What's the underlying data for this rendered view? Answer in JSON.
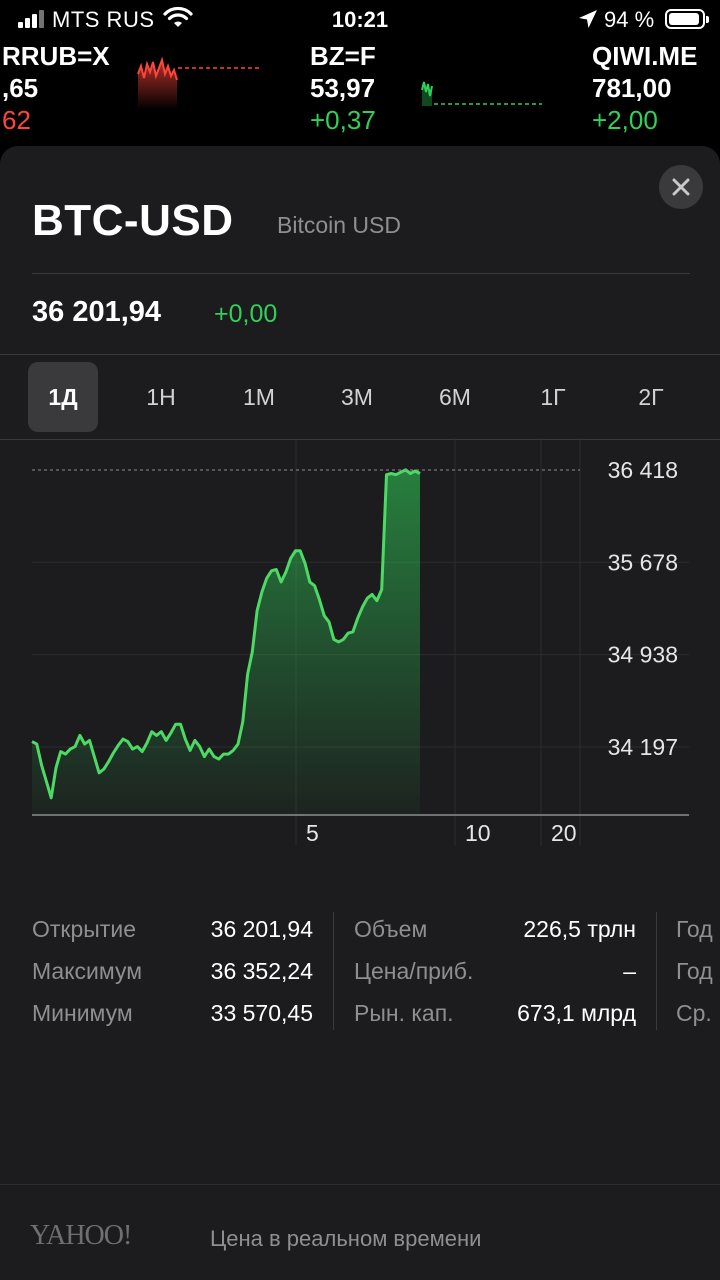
{
  "status_bar": {
    "carrier": "MTS RUS",
    "time": "10:21",
    "battery_percent": "94 %",
    "icons": [
      "signal-icon",
      "wifi-icon",
      "location-icon",
      "battery-icon"
    ]
  },
  "ticker": [
    {
      "symbol": "RRUB=X",
      "price": ",65",
      "change": "62",
      "change_color": "#ff453a"
    },
    {
      "symbol": "BZ=F",
      "price": "53,97",
      "change": "+0,37",
      "change_color": "#30d158"
    },
    {
      "symbol": "QIWI.ME",
      "price": "781,00",
      "change": "+2,00",
      "change_color": "#30d158"
    }
  ],
  "quote": {
    "symbol": "BTC-USD",
    "name": "Bitcoin USD",
    "price": "36 201,94",
    "change": "+0,00"
  },
  "ranges": [
    {
      "label": "1Д",
      "active": true
    },
    {
      "label": "1Н",
      "active": false
    },
    {
      "label": "1М",
      "active": false
    },
    {
      "label": "3М",
      "active": false
    },
    {
      "label": "6М",
      "active": false
    },
    {
      "label": "1Г",
      "active": false
    },
    {
      "label": "2Г",
      "active": false
    }
  ],
  "chart_data": {
    "type": "area",
    "y_ticks": [
      "36 418",
      "35 678",
      "34 938",
      "34 197"
    ],
    "x_ticks": [
      "5",
      "10",
      "20"
    ],
    "reference_line": 36418,
    "color": "#30d158",
    "values": [
      34240,
      34220,
      34050,
      33920,
      33790,
      34030,
      34160,
      34140,
      34180,
      34200,
      34290,
      34220,
      34250,
      34120,
      33990,
      34020,
      34080,
      34150,
      34210,
      34260,
      34240,
      34180,
      34200,
      34160,
      34230,
      34320,
      34290,
      34320,
      34250,
      34310,
      34380,
      34380,
      34260,
      34170,
      34250,
      34200,
      34120,
      34180,
      34120,
      34100,
      34140,
      34140,
      34170,
      34220,
      34400,
      34780,
      34960,
      35290,
      35440,
      35550,
      35610,
      35620,
      35520,
      35600,
      35710,
      35770,
      35770,
      35670,
      35520,
      35490,
      35380,
      35250,
      35200,
      35060,
      35040,
      35060,
      35110,
      35120,
      35230,
      35320,
      35390,
      35420,
      35370,
      35460,
      36380,
      36390,
      36380,
      36400,
      36420,
      36390,
      36410,
      36390
    ]
  },
  "stats": {
    "col1": [
      {
        "label": "Открытие",
        "value": "36 201,94"
      },
      {
        "label": "Максимум",
        "value": "36 352,24"
      },
      {
        "label": "Минимум",
        "value": "33 570,45"
      }
    ],
    "col2": [
      {
        "label": "Объем",
        "value": "226,5 трлн"
      },
      {
        "label": "Цена/приб.",
        "value": "–"
      },
      {
        "label": "Рын. кап.",
        "value": "673,1 млрд"
      }
    ],
    "col3": [
      {
        "label": "Год"
      },
      {
        "label": "Год"
      },
      {
        "label": "Ср."
      }
    ]
  },
  "footer": {
    "logo": "YAHOO!",
    "note": "Цена в реальном времени"
  }
}
